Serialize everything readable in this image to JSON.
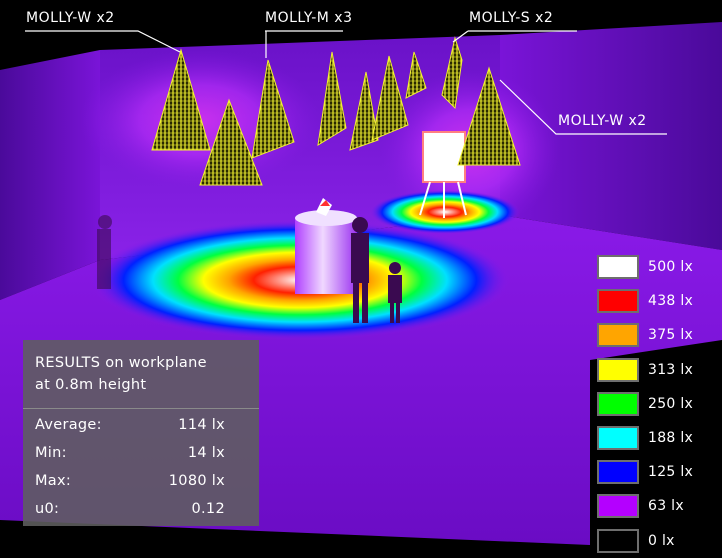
{
  "callouts": [
    {
      "label": "MOLLY-W x2"
    },
    {
      "label": "MOLLY-M x3"
    },
    {
      "label": "MOLLY-S x2"
    },
    {
      "label": "MOLLY-W x2"
    }
  ],
  "legend": [
    {
      "label": "500 lx",
      "color": "#ffffff"
    },
    {
      "label": "438 lx",
      "color": "#ff0000"
    },
    {
      "label": "375 lx",
      "color": "#ffa500"
    },
    {
      "label": "313 lx",
      "color": "#ffff00"
    },
    {
      "label": "250 lx",
      "color": "#00ff00"
    },
    {
      "label": "188 lx",
      "color": "#00ffff"
    },
    {
      "label": "125 lx",
      "color": "#0000ff"
    },
    {
      "label": "63 lx",
      "color": "#b400ff"
    },
    {
      "label": "0 lx",
      "color": "#000000"
    }
  ],
  "results": {
    "title_line1": "RESULTS on workplane",
    "title_line2": "at 0.8m height",
    "rows": [
      {
        "label": "Average:",
        "value": "114 lx"
      },
      {
        "label": "Min:",
        "value": "14 lx"
      },
      {
        "label": "Max:",
        "value": "1080 lx"
      },
      {
        "label": "u0:",
        "value": "0.12"
      }
    ]
  },
  "colors": {
    "room_purple": "#7a10e0",
    "fixture_yellow": "#f2f230"
  }
}
